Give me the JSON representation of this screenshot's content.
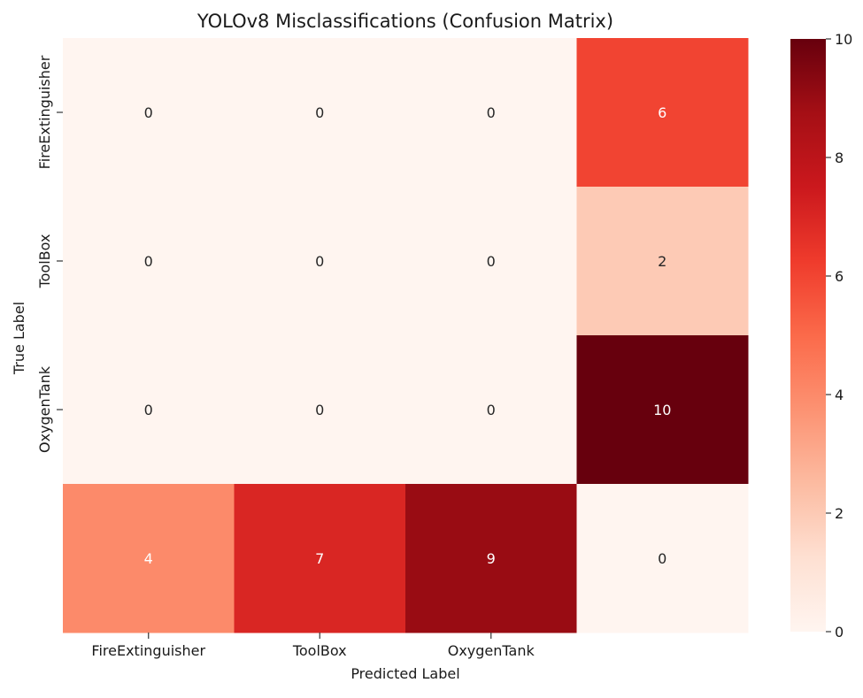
{
  "chart_data": {
    "type": "heatmap",
    "title": "YOLOv8 Misclassifications (Confusion Matrix)",
    "xlabel": "Predicted Label",
    "ylabel": "True Label",
    "x_tick_labels": [
      "FireExtinguisher",
      "ToolBox",
      "OxygenTank",
      ""
    ],
    "y_tick_labels": [
      "FireExtinguisher",
      "ToolBox",
      "OxygenTank",
      ""
    ],
    "matrix": [
      [
        0,
        0,
        0,
        6
      ],
      [
        0,
        0,
        0,
        2
      ],
      [
        0,
        0,
        0,
        10
      ],
      [
        4,
        7,
        9,
        0
      ]
    ],
    "colorbar": {
      "colormap": "Reds",
      "vmin": 0,
      "vmax": 10,
      "ticks": [
        0,
        2,
        4,
        6,
        8,
        10
      ]
    }
  }
}
